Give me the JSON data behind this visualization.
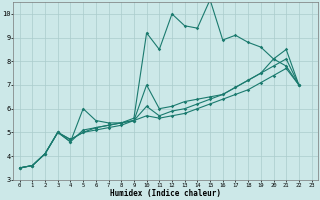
{
  "xlabel": "Humidex (Indice chaleur)",
  "background_color": "#cce8e8",
  "grid_color": "#aacccc",
  "line_color": "#1a7a6e",
  "xlim": [
    -0.5,
    23.5
  ],
  "ylim": [
    3,
    10.5
  ],
  "x_ticks": [
    0,
    1,
    2,
    3,
    4,
    5,
    6,
    7,
    8,
    9,
    10,
    11,
    12,
    13,
    14,
    15,
    16,
    17,
    18,
    19,
    20,
    21,
    22,
    23
  ],
  "y_ticks": [
    3,
    4,
    5,
    6,
    7,
    8,
    9,
    10
  ],
  "series": [
    [
      3.5,
      3.6,
      4.1,
      5.0,
      4.6,
      6.0,
      5.5,
      5.4,
      5.4,
      5.6,
      9.2,
      8.5,
      10.0,
      9.5,
      9.4,
      10.6,
      8.9,
      9.1,
      8.8,
      8.6,
      8.1,
      7.8,
      7.0
    ],
    [
      3.5,
      3.6,
      4.1,
      5.0,
      4.6,
      5.1,
      5.2,
      5.3,
      5.4,
      5.5,
      7.0,
      6.0,
      6.1,
      6.3,
      6.4,
      6.5,
      6.6,
      6.9,
      7.2,
      7.5,
      8.1,
      8.5,
      7.0
    ],
    [
      3.5,
      3.6,
      4.1,
      5.0,
      4.7,
      5.0,
      5.2,
      5.3,
      5.4,
      5.5,
      6.1,
      5.7,
      5.9,
      6.0,
      6.2,
      6.4,
      6.6,
      6.9,
      7.2,
      7.5,
      7.8,
      8.1,
      7.0
    ],
    [
      3.5,
      3.6,
      4.1,
      5.0,
      4.7,
      5.0,
      5.1,
      5.2,
      5.3,
      5.5,
      5.7,
      5.6,
      5.7,
      5.8,
      6.0,
      6.2,
      6.4,
      6.6,
      6.8,
      7.1,
      7.4,
      7.7,
      7.0
    ]
  ]
}
